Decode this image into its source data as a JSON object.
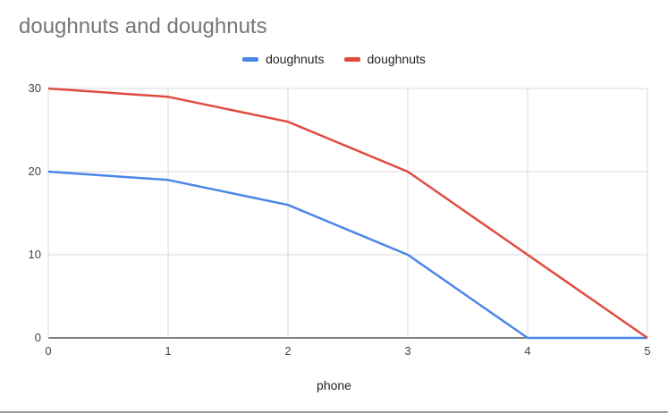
{
  "chart_data": {
    "type": "line",
    "title": "doughnuts and doughnuts",
    "xlabel": "phone",
    "ylabel": "",
    "x": [
      0,
      1,
      2,
      3,
      4,
      5
    ],
    "xlim": [
      0,
      5
    ],
    "ylim": [
      0,
      30
    ],
    "yticks": [
      0,
      10,
      20,
      30
    ],
    "xticks": [
      0,
      1,
      2,
      3,
      4,
      5
    ],
    "grid": true,
    "legend_position": "top-center",
    "series": [
      {
        "name": "doughnuts",
        "color": "#4a86e8",
        "values": [
          20,
          19,
          16,
          10,
          0,
          0
        ]
      },
      {
        "name": "doughnuts",
        "color": "#e04b3f",
        "values": [
          30,
          29,
          26,
          20,
          10,
          0
        ]
      }
    ]
  }
}
